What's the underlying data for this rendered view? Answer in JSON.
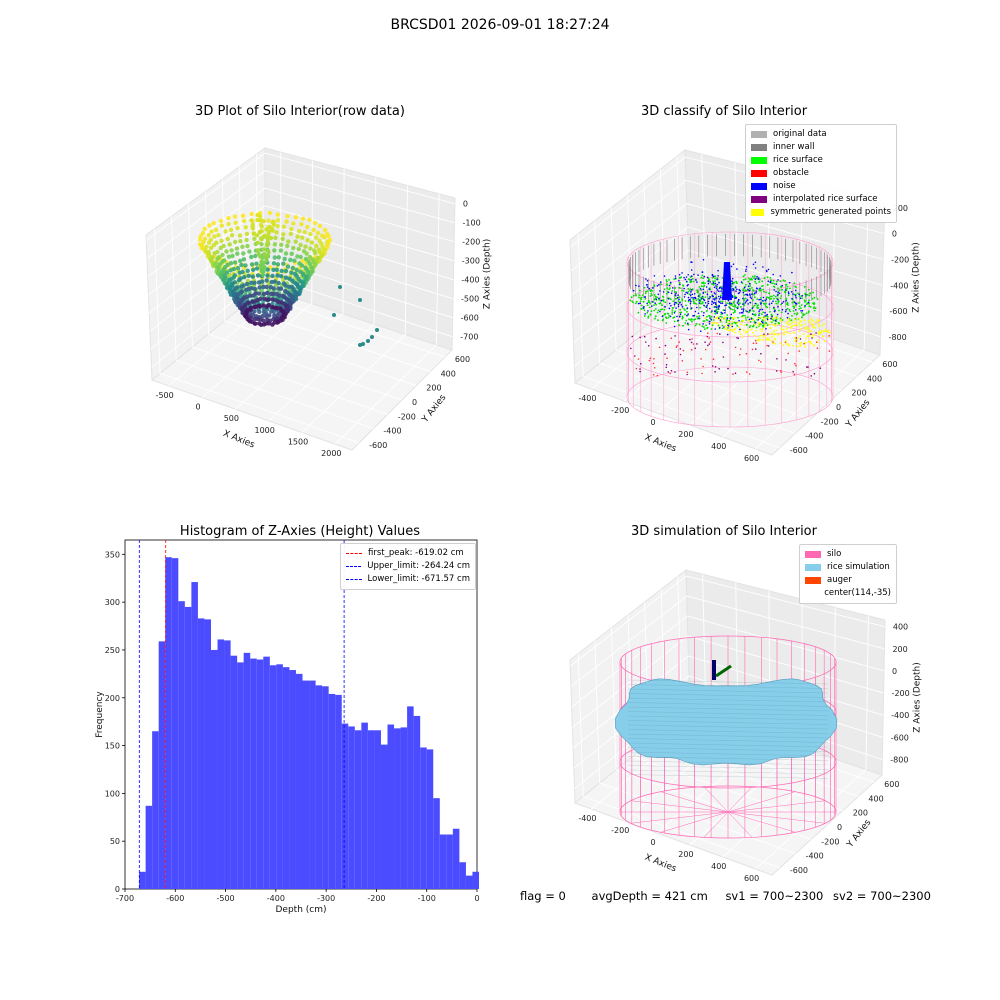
{
  "header": {
    "title": "BRCSD01 2026-09-01 18:27:24"
  },
  "panels": {
    "raw": {
      "title": "3D Plot of Silo Interior(row data)",
      "xlabel": "X Axies",
      "ylabel": "Y Axies",
      "zlabel": "Z Axies (Depth)",
      "xticks": [
        "-500",
        "0",
        "500",
        "1000",
        "1500",
        "2000"
      ],
      "yticks": [
        "600",
        "400",
        "200",
        "0",
        "-200",
        "-400",
        "-600"
      ],
      "zticks": [
        "0",
        "-100",
        "-200",
        "-300",
        "-400",
        "-500",
        "-600",
        "-700"
      ]
    },
    "classify": {
      "title": "3D classify of Silo Interior",
      "xlabel": "X Axies",
      "ylabel": "Y Axies",
      "zlabel": "Z Axies (Depth)",
      "xticks": [
        "-400",
        "-200",
        "0",
        "200",
        "400",
        "600"
      ],
      "yticks": [
        "600",
        "400",
        "200",
        "0",
        "-200",
        "-400",
        "-600"
      ],
      "zticks": [
        "200",
        "0",
        "-200",
        "-400",
        "-600",
        "-800"
      ],
      "legend": [
        {
          "label": "original data",
          "color": "#b0b0b0"
        },
        {
          "label": "inner wall",
          "color": "#808080"
        },
        {
          "label": "rice surface",
          "color": "#00ff00"
        },
        {
          "label": "obstacle",
          "color": "#ff0000"
        },
        {
          "label": "noise",
          "color": "#0000ff"
        },
        {
          "label": "interpolated rice surface",
          "color": "#800080"
        },
        {
          "label": "symmetric generated points",
          "color": "#ffff00"
        }
      ]
    },
    "simulation": {
      "title": "3D simulation of Silo Interior",
      "xlabel": "X Axies",
      "ylabel": "Y Axies",
      "zlabel": "Z Axies (Depth)",
      "xticks": [
        "-400",
        "-200",
        "0",
        "200",
        "400",
        "600"
      ],
      "yticks": [
        "600",
        "400",
        "200",
        "0",
        "-200",
        "-400",
        "-600"
      ],
      "zticks": [
        "400",
        "200",
        "0",
        "-200",
        "-400",
        "-600",
        "-800"
      ],
      "legend": [
        {
          "label": "silo",
          "color": "#ff69b4"
        },
        {
          "label": "rice simulation",
          "color": "#87ceeb"
        },
        {
          "label": "auger",
          "color": "#ff4500"
        },
        {
          "label": "center(114,-35)",
          "color": ""
        }
      ]
    }
  },
  "status": {
    "flag": "flag = 0",
    "avg_depth": "avgDepth = 421 cm",
    "sv1": "sv1 = 700~2300",
    "sv2": "sv2 = 700~2300"
  },
  "chart_data": {
    "type": "bar",
    "title": "Histogram of Z-Axies (Height) Values",
    "xlabel": "Depth (cm)",
    "ylabel": "Frequency",
    "xlim": [
      -700,
      0
    ],
    "ylim": [
      0,
      365
    ],
    "xticks": [
      -700,
      -600,
      -500,
      -400,
      -300,
      -200,
      -100,
      0
    ],
    "yticks": [
      0,
      50,
      100,
      150,
      200,
      250,
      300,
      350
    ],
    "bin_start": -672,
    "bin_width": 13,
    "values": [
      18,
      87,
      165,
      259,
      347,
      346,
      301,
      295,
      321,
      283,
      282,
      250,
      261,
      260,
      244,
      237,
      247,
      241,
      240,
      243,
      234,
      235,
      232,
      229,
      225,
      218,
      218,
      213,
      212,
      204,
      203,
      173,
      170,
      166,
      174,
      166,
      166,
      151,
      172,
      168,
      169,
      191,
      181,
      148,
      146,
      95,
      57,
      57,
      63,
      28,
      14,
      18
    ],
    "vlines": [
      {
        "label": "first_peak: -619.02 cm",
        "x": -619.02,
        "color": "#ff0000"
      },
      {
        "label": "Upper_limit: -264.24 cm",
        "x": -264.24,
        "color": "#0000ff"
      },
      {
        "label": "Lower_limit: -671.57 cm",
        "x": -671.57,
        "color": "#0000ff"
      }
    ],
    "bar_color": "#4b4bff",
    "legend_position": "top-right",
    "grid": false
  }
}
